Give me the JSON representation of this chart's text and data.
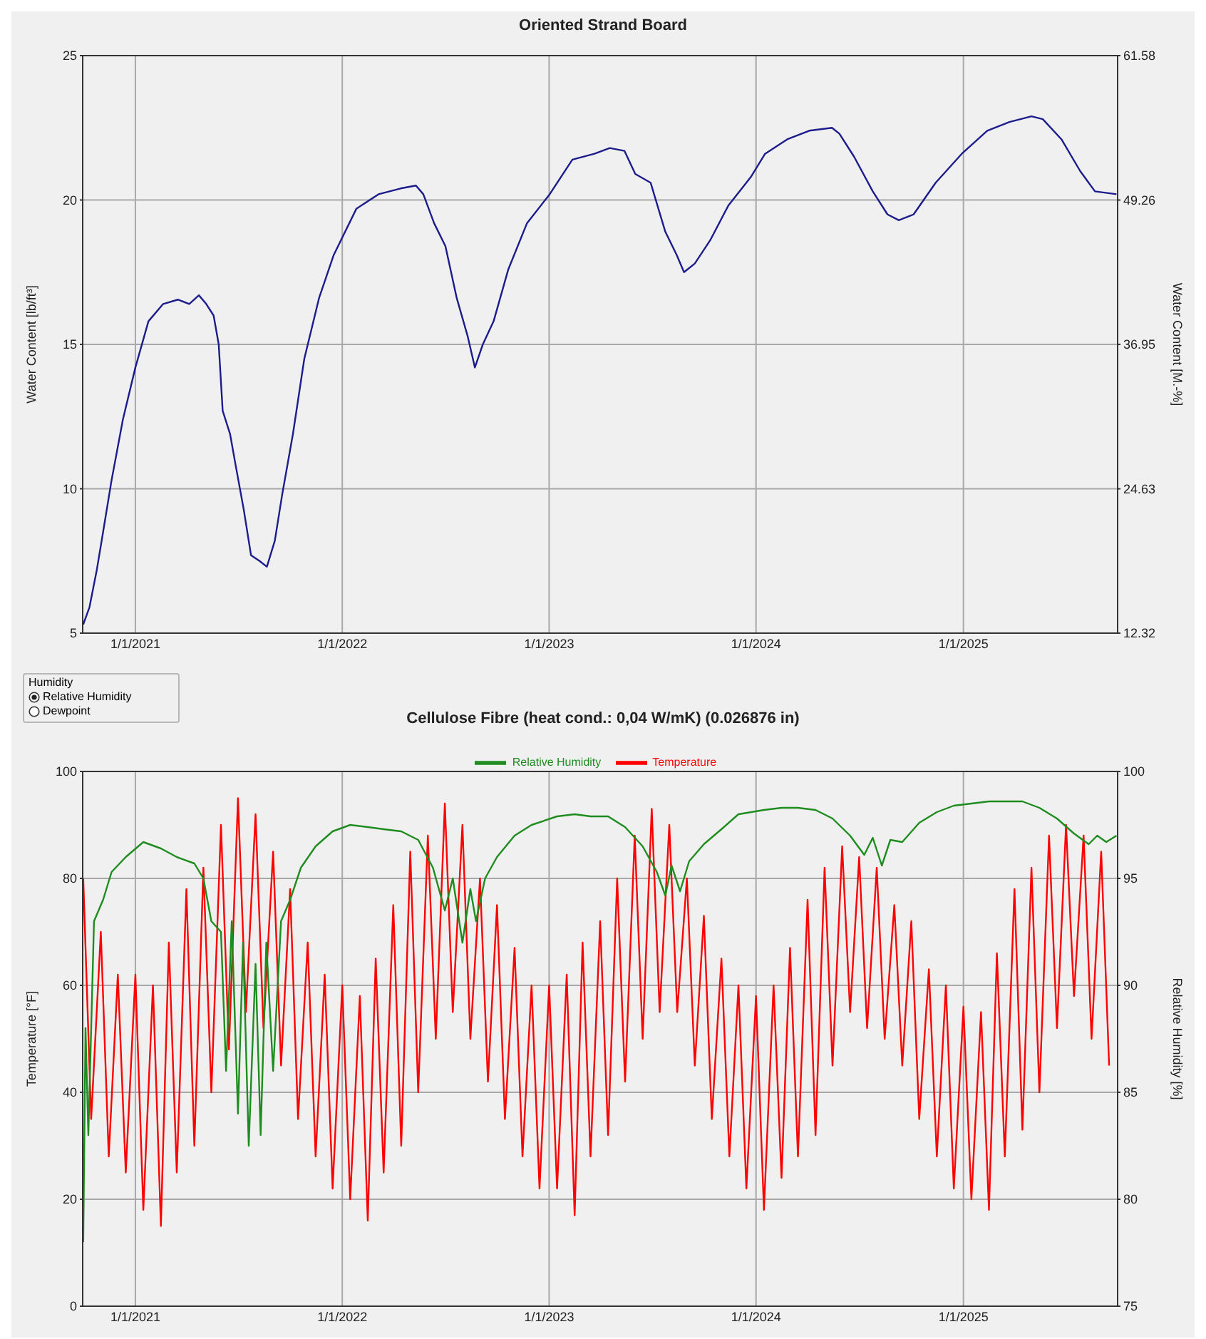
{
  "chart_data": [
    {
      "type": "line",
      "title": "Oriented Strand Board",
      "ylabel": "Water Content [lb/ft³]",
      "y2label": "Water Content [M.-%]",
      "xlim": [
        "2020-09-30",
        "2025-09-30"
      ],
      "xticks": [
        {
          "value": "2021-01-01",
          "label": "1/1/2021"
        },
        {
          "value": "2022-01-01",
          "label": "1/1/2022"
        },
        {
          "value": "2023-01-01",
          "label": "1/1/2023"
        },
        {
          "value": "2024-01-01",
          "label": "1/1/2024"
        },
        {
          "value": "2025-01-01",
          "label": "1/1/2025"
        }
      ],
      "ylim": [
        5,
        25
      ],
      "yticks": [
        5,
        10,
        15,
        20,
        25
      ],
      "y2lim": [
        12.32,
        61.58
      ],
      "y2ticks": [
        12.32,
        24.63,
        36.95,
        49.26,
        61.58
      ],
      "grid": true,
      "marker": "none",
      "line_style": "solid",
      "series": [
        {
          "color": "#1c1c8c",
          "x": [
            "2020-10-01",
            "2020-10-12",
            "2020-10-25",
            "2020-11-05",
            "2020-11-20",
            "2020-12-10",
            "2021-01-01",
            "2021-01-24",
            "2021-02-19",
            "2021-03-17",
            "2021-04-06",
            "2021-04-23",
            "2021-05-06",
            "2021-05-19",
            "2021-05-28",
            "2021-06-04",
            "2021-06-17",
            "2021-06-27",
            "2021-07-11",
            "2021-07-24",
            "2021-08-08",
            "2021-08-21",
            "2021-09-04",
            "2021-09-17",
            "2021-10-06",
            "2021-10-26",
            "2021-11-21",
            "2021-12-17",
            "2022-01-26",
            "2022-03-06",
            "2022-04-14",
            "2022-05-11",
            "2022-05-24",
            "2022-06-12",
            "2022-07-02",
            "2022-07-22",
            "2022-08-10",
            "2022-08-23",
            "2022-09-06",
            "2022-09-25",
            "2022-10-21",
            "2022-11-23",
            "2023-01-02",
            "2023-02-11",
            "2023-03-22",
            "2023-04-18",
            "2023-05-14",
            "2023-06-02",
            "2023-06-29",
            "2023-07-25",
            "2023-08-14",
            "2023-08-27",
            "2023-09-15",
            "2023-10-12",
            "2023-11-13",
            "2023-12-23",
            "2024-01-17",
            "2024-02-25",
            "2024-04-04",
            "2024-05-14",
            "2024-05-27",
            "2024-06-22",
            "2024-07-25",
            "2024-08-20",
            "2024-09-09",
            "2024-10-05",
            "2024-11-13",
            "2024-12-29",
            "2025-02-12",
            "2025-03-23",
            "2025-05-01",
            "2025-05-21",
            "2025-06-23",
            "2025-07-26",
            "2025-08-21",
            "2025-09-28"
          ],
          "values": [
            5.3,
            5.9,
            7.2,
            8.5,
            10.3,
            12.4,
            14.2,
            15.8,
            16.4,
            16.55,
            16.4,
            16.7,
            16.4,
            16.0,
            15.0,
            12.7,
            11.9,
            10.8,
            9.3,
            7.7,
            7.5,
            7.3,
            8.2,
            9.8,
            11.9,
            14.5,
            16.6,
            18.1,
            19.7,
            20.2,
            20.4,
            20.5,
            20.2,
            19.2,
            18.4,
            16.6,
            15.3,
            14.2,
            15.0,
            15.8,
            17.6,
            19.2,
            20.2,
            21.4,
            21.6,
            21.8,
            21.7,
            20.9,
            20.6,
            18.9,
            18.1,
            17.5,
            17.8,
            18.6,
            19.8,
            20.8,
            21.6,
            22.1,
            22.4,
            22.5,
            22.3,
            21.5,
            20.3,
            19.5,
            19.3,
            19.5,
            20.6,
            21.6,
            22.4,
            22.7,
            22.9,
            22.8,
            22.1,
            21.0,
            20.3,
            20.2
          ]
        }
      ]
    },
    {
      "type": "line",
      "title": "Cellulose Fibre (heat cond.: 0,04 W/mK) (0.026876 in)",
      "ylabel": "Temperature [°F]",
      "y2label": "Relative Humidity [%]",
      "annotations": [
        "Humidity",
        "Relative Humidity",
        "Dewpoint"
      ],
      "xlim": [
        "2020-09-30",
        "2025-09-30"
      ],
      "xticks": [
        {
          "value": "2021-01-01",
          "label": "1/1/2021"
        },
        {
          "value": "2022-01-01",
          "label": "1/1/2022"
        },
        {
          "value": "2023-01-01",
          "label": "1/1/2023"
        },
        {
          "value": "2024-01-01",
          "label": "1/1/2024"
        },
        {
          "value": "2025-01-01",
          "label": "1/1/2025"
        }
      ],
      "ylim": [
        0,
        100
      ],
      "yticks": [
        0,
        20,
        40,
        60,
        80,
        100
      ],
      "y2lim": [
        75,
        100
      ],
      "y2ticks": [
        75,
        80,
        85,
        90,
        95,
        100
      ],
      "grid": true,
      "legend": "top",
      "marker": "none",
      "line_style": "solid",
      "series": [
        {
          "name": "Temperature",
          "color": "#ff0000",
          "x": [
            "2020-10-01",
            "2020-10-15",
            "2020-11-01",
            "2020-11-15",
            "2020-12-01",
            "2020-12-15",
            "2021-01-01",
            "2021-01-15",
            "2021-02-01",
            "2021-02-15",
            "2021-03-01",
            "2021-03-15",
            "2021-04-01",
            "2021-04-15",
            "2021-05-01",
            "2021-05-15",
            "2021-06-01",
            "2021-06-15",
            "2021-07-01",
            "2021-07-15",
            "2021-08-01",
            "2021-08-15",
            "2021-09-01",
            "2021-09-15",
            "2021-10-01",
            "2021-10-15",
            "2021-11-01",
            "2021-11-15",
            "2021-12-01",
            "2021-12-15",
            "2022-01-01",
            "2022-01-15",
            "2022-02-01",
            "2022-02-15",
            "2022-03-01",
            "2022-03-15",
            "2022-04-01",
            "2022-04-15",
            "2022-05-01",
            "2022-05-15",
            "2022-06-01",
            "2022-06-15",
            "2022-07-01",
            "2022-07-15",
            "2022-08-01",
            "2022-08-15",
            "2022-09-01",
            "2022-09-15",
            "2022-10-01",
            "2022-10-15",
            "2022-11-01",
            "2022-11-15",
            "2022-12-01",
            "2022-12-15",
            "2023-01-01",
            "2023-01-15",
            "2023-02-01",
            "2023-02-15",
            "2023-03-01",
            "2023-03-15",
            "2023-04-01",
            "2023-04-15",
            "2023-05-01",
            "2023-05-15",
            "2023-06-01",
            "2023-06-15",
            "2023-07-01",
            "2023-07-15",
            "2023-08-01",
            "2023-08-15",
            "2023-09-01",
            "2023-09-15",
            "2023-10-01",
            "2023-10-15",
            "2023-11-01",
            "2023-11-15",
            "2023-12-01",
            "2023-12-15",
            "2024-01-01",
            "2024-01-15",
            "2024-02-01",
            "2024-02-15",
            "2024-03-01",
            "2024-03-15",
            "2024-04-01",
            "2024-04-15",
            "2024-05-01",
            "2024-05-15",
            "2024-06-01",
            "2024-06-15",
            "2024-07-01",
            "2024-07-15",
            "2024-08-01",
            "2024-08-15",
            "2024-09-01",
            "2024-09-15",
            "2024-10-01",
            "2024-10-15",
            "2024-11-01",
            "2024-11-15",
            "2024-12-01",
            "2024-12-15",
            "2025-01-01",
            "2025-01-15",
            "2025-02-01",
            "2025-02-15",
            "2025-03-01",
            "2025-03-15",
            "2025-04-01",
            "2025-04-15",
            "2025-05-01",
            "2025-05-15",
            "2025-06-01",
            "2025-06-15",
            "2025-07-01",
            "2025-07-15",
            "2025-08-01",
            "2025-08-15",
            "2025-09-01",
            "2025-09-15"
          ],
          "values": [
            80,
            35,
            70,
            28,
            62,
            25,
            62,
            18,
            60,
            15,
            68,
            25,
            78,
            30,
            82,
            40,
            90,
            48,
            95,
            55,
            92,
            52,
            85,
            45,
            78,
            35,
            68,
            28,
            62,
            22,
            60,
            20,
            58,
            16,
            65,
            25,
            75,
            30,
            85,
            40,
            88,
            50,
            94,
            55,
            90,
            50,
            80,
            42,
            75,
            35,
            67,
            28,
            60,
            22,
            60,
            22,
            62,
            17,
            68,
            28,
            72,
            32,
            80,
            42,
            88,
            50,
            93,
            55,
            90,
            55,
            80,
            45,
            73,
            35,
            65,
            28,
            60,
            22,
            58,
            18,
            60,
            24,
            67,
            28,
            76,
            32,
            82,
            45,
            86,
            55,
            84,
            52,
            82,
            50,
            75,
            45,
            72,
            35,
            63,
            28,
            60,
            22,
            56,
            20,
            55,
            18,
            66,
            28,
            78,
            33,
            82,
            40,
            88,
            52,
            90,
            58,
            88,
            50,
            85,
            45
          ]
        },
        {
          "name": "Relative Humidity",
          "color": "#1e8c1e",
          "axis": "y2",
          "x": [
            "2020-10-01",
            "2020-10-05",
            "2020-10-10",
            "2020-10-20",
            "2020-11-05",
            "2020-11-20",
            "2020-12-15",
            "2021-01-15",
            "2021-02-15",
            "2021-03-15",
            "2021-04-15",
            "2021-05-01",
            "2021-05-15",
            "2021-06-01",
            "2021-06-10",
            "2021-06-20",
            "2021-07-01",
            "2021-07-10",
            "2021-07-20",
            "2021-08-01",
            "2021-08-10",
            "2021-08-20",
            "2021-09-01",
            "2021-09-15",
            "2021-10-01",
            "2021-10-20",
            "2021-11-15",
            "2021-12-15",
            "2022-01-15",
            "2022-02-15",
            "2022-03-15",
            "2022-04-15",
            "2022-05-15",
            "2022-06-10",
            "2022-07-01",
            "2022-07-15",
            "2022-08-01",
            "2022-08-15",
            "2022-08-25",
            "2022-09-10",
            "2022-10-01",
            "2022-11-01",
            "2022-12-01",
            "2023-01-15",
            "2023-02-15",
            "2023-03-15",
            "2023-04-15",
            "2023-05-15",
            "2023-06-15",
            "2023-07-10",
            "2023-07-25",
            "2023-08-05",
            "2023-08-20",
            "2023-09-05",
            "2023-10-01",
            "2023-11-01",
            "2023-12-01",
            "2024-01-15",
            "2024-02-15",
            "2024-03-15",
            "2024-04-15",
            "2024-05-15",
            "2024-06-15",
            "2024-07-10",
            "2024-07-25",
            "2024-08-10",
            "2024-08-25",
            "2024-09-15",
            "2024-10-15",
            "2024-11-15",
            "2024-12-15",
            "2025-01-15",
            "2025-02-15",
            "2025-03-15",
            "2025-04-15",
            "2025-05-15",
            "2025-06-15",
            "2025-07-15",
            "2025-08-10",
            "2025-08-25",
            "2025-09-10",
            "2025-09-28"
          ],
          "values": [
            78,
            88,
            83,
            93,
            94,
            95.3,
            96.0,
            96.7,
            96.4,
            96.0,
            95.7,
            95.0,
            93.0,
            92.5,
            86,
            93,
            84,
            92,
            82.5,
            91,
            83,
            92,
            86,
            93,
            94,
            95.5,
            96.5,
            97.2,
            97.5,
            97.4,
            97.3,
            97.2,
            96.8,
            95.5,
            93.5,
            95,
            92,
            94.5,
            93,
            95,
            96,
            97,
            97.5,
            97.9,
            98.0,
            97.9,
            97.9,
            97.4,
            96.5,
            95.3,
            94.2,
            95.6,
            94.4,
            95.8,
            96.6,
            97.3,
            98.0,
            98.2,
            98.3,
            98.3,
            98.2,
            97.8,
            97.0,
            96.1,
            96.9,
            95.6,
            96.8,
            96.7,
            97.6,
            98.1,
            98.4,
            98.5,
            98.6,
            98.6,
            98.6,
            98.3,
            97.8,
            97.1,
            96.6,
            97.0,
            96.7,
            97.0
          ]
        }
      ]
    }
  ]
}
